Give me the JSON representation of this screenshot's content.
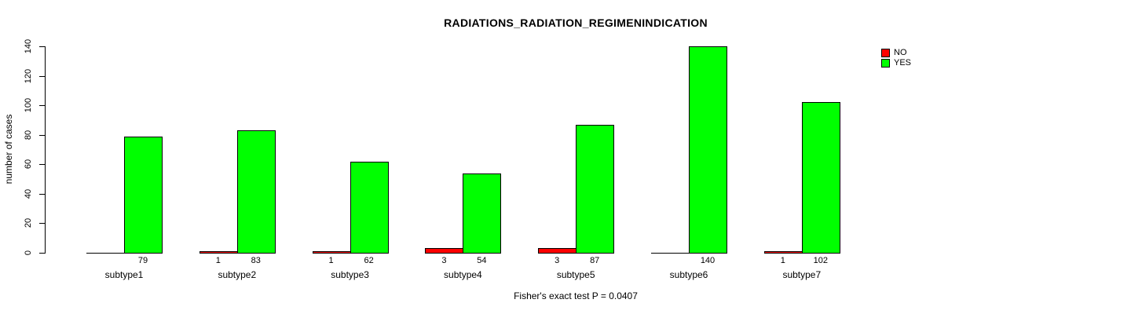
{
  "chart_data": {
    "type": "bar",
    "title": "RADIATIONS_RADIATION_REGIMENINDICATION",
    "ylabel": "number of cases",
    "footer": "Fisher's exact test P = 0.0407",
    "categories": [
      "subtype1",
      "subtype2",
      "subtype3",
      "subtype4",
      "subtype5",
      "subtype6",
      "subtype7"
    ],
    "series": [
      {
        "name": "NO",
        "color": "#FF0000",
        "values": [
          0,
          1,
          1,
          3,
          3,
          0,
          1
        ],
        "labels": [
          "",
          "1",
          "1",
          "3",
          "3",
          "",
          "1"
        ]
      },
      {
        "name": "YES",
        "color": "#00FF00",
        "values": [
          79,
          83,
          62,
          54,
          87,
          140,
          102
        ],
        "labels": [
          "79",
          "83",
          "62",
          "54",
          "87",
          "140",
          "102"
        ]
      }
    ],
    "ylim": [
      0,
      140
    ],
    "yticks": [
      0,
      20,
      40,
      60,
      80,
      100,
      120,
      140
    ],
    "legend_position": "top-right",
    "grid": false,
    "background_color": "#FFFFFF",
    "axis_color": "#000000"
  }
}
